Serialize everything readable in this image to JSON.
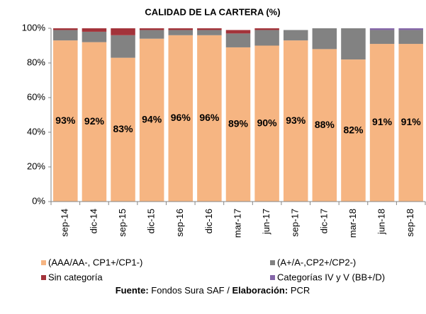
{
  "chart_data": {
    "type": "stacked_bar",
    "title": "CALIDAD DE LA CARTERA (%)",
    "categories": [
      "sep-14",
      "dic-14",
      "sep-15",
      "dic-15",
      "sep-16",
      "dic-16",
      "mar-17",
      "jun-17",
      "sep-17",
      "dic-17",
      "mar-18",
      "jun-18",
      "sep-18"
    ],
    "series": [
      {
        "name": "(AAA/AA-, CP1+/CP1-)",
        "color": "#f6b582",
        "values": [
          93,
          92,
          83,
          94,
          96,
          96,
          89,
          90,
          93,
          88,
          82,
          91,
          91
        ],
        "value_labels": [
          "93%",
          "92%",
          "83%",
          "94%",
          "96%",
          "96%",
          "89%",
          "90%",
          "93%",
          "88%",
          "82%",
          "91%",
          "91%"
        ]
      },
      {
        "name": "(A+/A-,CP2+/CP2-)",
        "color": "#828282",
        "values": [
          6,
          6,
          13,
          5,
          3,
          3,
          8,
          9,
          6,
          12,
          18,
          8,
          8
        ]
      },
      {
        "name": "Sin categoría",
        "color": "#a3333a",
        "values": [
          1,
          2,
          4,
          1,
          1,
          1,
          2,
          1,
          0,
          0,
          0,
          0,
          0
        ]
      },
      {
        "name": "Categorías IV y V (BB+/D)",
        "color": "#8466a8",
        "values": [
          0,
          0,
          0,
          0,
          0,
          0,
          0,
          0,
          0,
          0,
          0,
          1,
          1
        ]
      }
    ],
    "ylim": [
      0,
      100
    ],
    "yticks": [
      {
        "value": 0,
        "label": "0%"
      },
      {
        "value": 20,
        "label": "20%"
      },
      {
        "value": 40,
        "label": "40%"
      },
      {
        "value": 60,
        "label": "60%"
      },
      {
        "value": 80,
        "label": "80%"
      },
      {
        "value": 100,
        "label": "100%"
      }
    ],
    "grid": false,
    "legend": "bottom",
    "source": {
      "label1": "Fuente:",
      "text1": "Fondos Sura SAF /",
      "label2": "Elaboración:",
      "text2": "PCR"
    }
  }
}
